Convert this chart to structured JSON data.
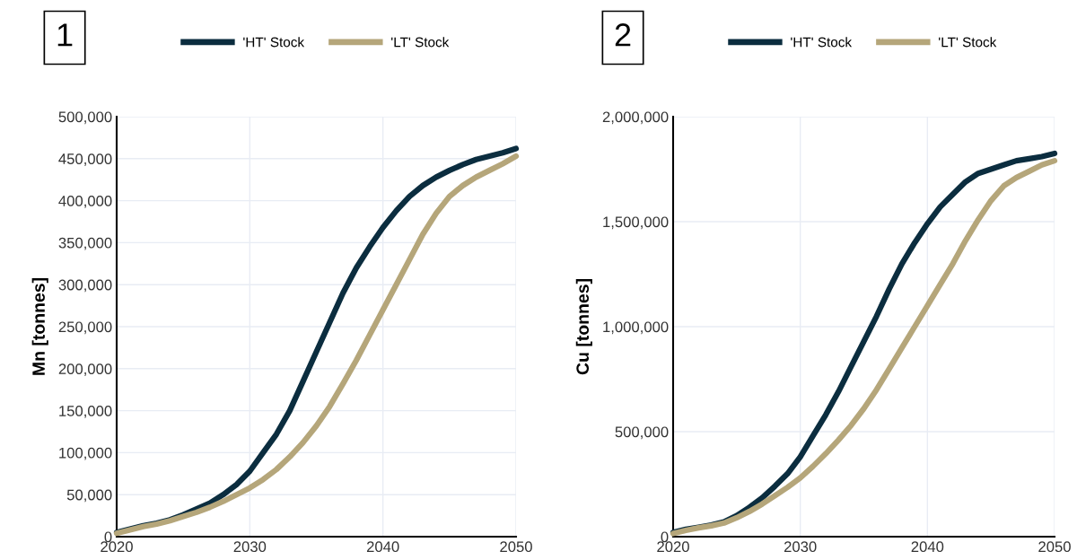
{
  "chart_data": [
    {
      "type": "line",
      "ylabel": "Mn [tonnes]",
      "annotations": [
        "1"
      ],
      "legend": "top",
      "grid": true,
      "x": [
        2020,
        2021,
        2022,
        2023,
        2024,
        2025,
        2026,
        2027,
        2028,
        2029,
        2030,
        2031,
        2032,
        2033,
        2034,
        2035,
        2036,
        2037,
        2038,
        2039,
        2040,
        2041,
        2042,
        2043,
        2044,
        2045,
        2046,
        2047,
        2048,
        2049,
        2050
      ],
      "xlim": [
        2020,
        2050
      ],
      "xticks": [
        2020,
        2030,
        2040,
        2050
      ],
      "ylim": [
        0,
        500000
      ],
      "yticks": [
        {
          "value": 0,
          "label": "0"
        },
        {
          "value": 50000,
          "label": "50,000"
        },
        {
          "value": 100000,
          "label": "100,000"
        },
        {
          "value": 150000,
          "label": "150,000"
        },
        {
          "value": 200000,
          "label": "200,000"
        },
        {
          "value": 250000,
          "label": "250,000"
        },
        {
          "value": 300000,
          "label": "300,000"
        },
        {
          "value": 350000,
          "label": "350,000"
        },
        {
          "value": 400000,
          "label": "400,000"
        },
        {
          "value": 450000,
          "label": "450,000"
        },
        {
          "value": 500000,
          "label": "500,000"
        }
      ],
      "series": [
        {
          "name": "'HT' Stock",
          "color": "#0b2d3f",
          "values": [
            5000,
            9000,
            13000,
            16000,
            20000,
            26000,
            33000,
            40000,
            50000,
            62000,
            78000,
            100000,
            122000,
            150000,
            185000,
            220000,
            255000,
            290000,
            320000,
            345000,
            368000,
            388000,
            405000,
            418000,
            428000,
            436000,
            443000,
            449000,
            453000,
            457000,
            462000
          ]
        },
        {
          "name": "'LT' Stock",
          "color": "#b5a67a",
          "values": [
            4000,
            8000,
            12000,
            15000,
            19000,
            24000,
            29000,
            35000,
            42000,
            50000,
            58000,
            68000,
            80000,
            95000,
            112000,
            132000,
            155000,
            182000,
            210000,
            240000,
            270000,
            300000,
            330000,
            360000,
            385000,
            405000,
            418000,
            428000,
            436000,
            444000,
            453000
          ]
        }
      ]
    },
    {
      "type": "line",
      "ylabel": "Cu [tonnes]",
      "annotations": [
        "2"
      ],
      "legend": "top",
      "grid": true,
      "x": [
        2020,
        2021,
        2022,
        2023,
        2024,
        2025,
        2026,
        2027,
        2028,
        2029,
        2030,
        2031,
        2032,
        2033,
        2034,
        2035,
        2036,
        2037,
        2038,
        2039,
        2040,
        2041,
        2042,
        2043,
        2044,
        2045,
        2046,
        2047,
        2048,
        2049,
        2050
      ],
      "xlim": [
        2020,
        2050
      ],
      "xticks": [
        2020,
        2030,
        2040,
        2050
      ],
      "ylim": [
        0,
        2000000
      ],
      "yticks": [
        {
          "value": 0,
          "label": "0"
        },
        {
          "value": 500000,
          "label": "500,000"
        },
        {
          "value": 1000000,
          "label": "1,000,000"
        },
        {
          "value": 1500000,
          "label": "1,500,000"
        },
        {
          "value": 2000000,
          "label": "2,000,000"
        }
      ],
      "series": [
        {
          "name": "'HT' Stock",
          "color": "#0b2d3f",
          "values": [
            20000,
            35000,
            45000,
            55000,
            70000,
            100000,
            140000,
            185000,
            240000,
            300000,
            380000,
            480000,
            580000,
            690000,
            810000,
            930000,
            1050000,
            1180000,
            1300000,
            1400000,
            1490000,
            1570000,
            1630000,
            1690000,
            1730000,
            1750000,
            1770000,
            1790000,
            1800000,
            1810000,
            1825000
          ]
        },
        {
          "name": "'LT' Stock",
          "color": "#b5a67a",
          "values": [
            15000,
            30000,
            42000,
            52000,
            65000,
            90000,
            120000,
            155000,
            195000,
            235000,
            280000,
            335000,
            395000,
            460000,
            530000,
            610000,
            700000,
            800000,
            900000,
            1000000,
            1100000,
            1200000,
            1300000,
            1410000,
            1510000,
            1600000,
            1670000,
            1710000,
            1740000,
            1770000,
            1790000
          ]
        }
      ]
    }
  ]
}
